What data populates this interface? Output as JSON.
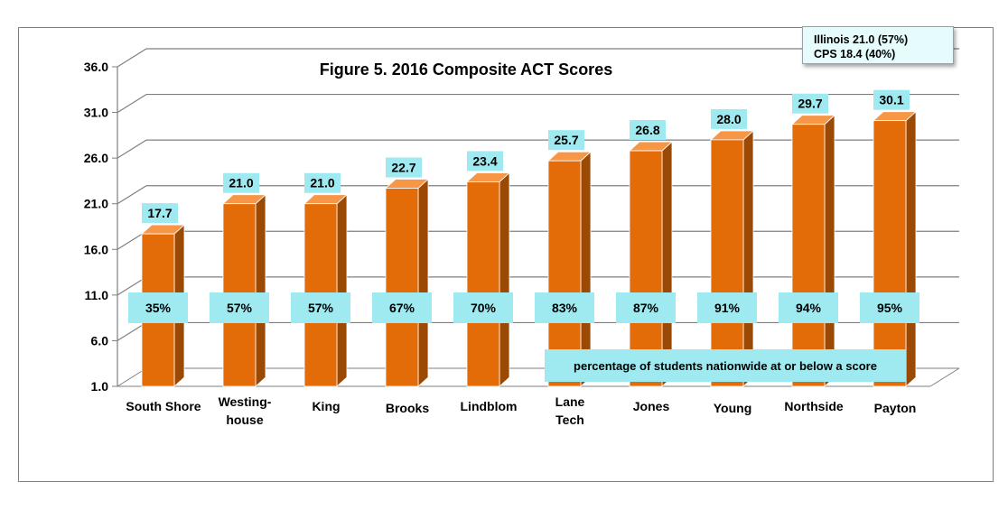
{
  "chart_data": {
    "type": "bar",
    "title": "Figure 5. 2016 Composite ACT Scores",
    "categories": [
      "South Shore",
      "Westing-\nhouse",
      "King",
      "Brooks",
      "Lindblom",
      "Lane\nTech",
      "Jones",
      "Young",
      "Northside",
      "Payton"
    ],
    "values": [
      17.7,
      21.0,
      21.0,
      22.7,
      23.4,
      25.7,
      26.8,
      28.0,
      29.7,
      30.1
    ],
    "value_labels": [
      "17.7",
      "21.0",
      "21.0",
      "22.7",
      "23.4",
      "25.7",
      "26.8",
      "28.0",
      "29.7",
      "30.1"
    ],
    "percent_labels": [
      "35%",
      "57%",
      "57%",
      "67%",
      "70%",
      "83%",
      "87%",
      "91%",
      "94%",
      "95%"
    ],
    "percent_note": "percentage of students nationwide at or below a score",
    "y_ticks": [
      "1.0",
      "6.0",
      "11.0",
      "16.0",
      "21.0",
      "26.0",
      "31.0",
      "36.0"
    ],
    "ylim": [
      1,
      36
    ],
    "grid": true,
    "colors": {
      "bar_front": "#e36c09",
      "bar_side": "#9b4a06",
      "bar_top": "#f79646",
      "label_bg": "#9eeaf0",
      "gridline": "#7f7f7f"
    },
    "reference_box": {
      "line1": "Illinois 21.0 (57%)",
      "line2": "CPS 18.4 (40%)"
    }
  }
}
